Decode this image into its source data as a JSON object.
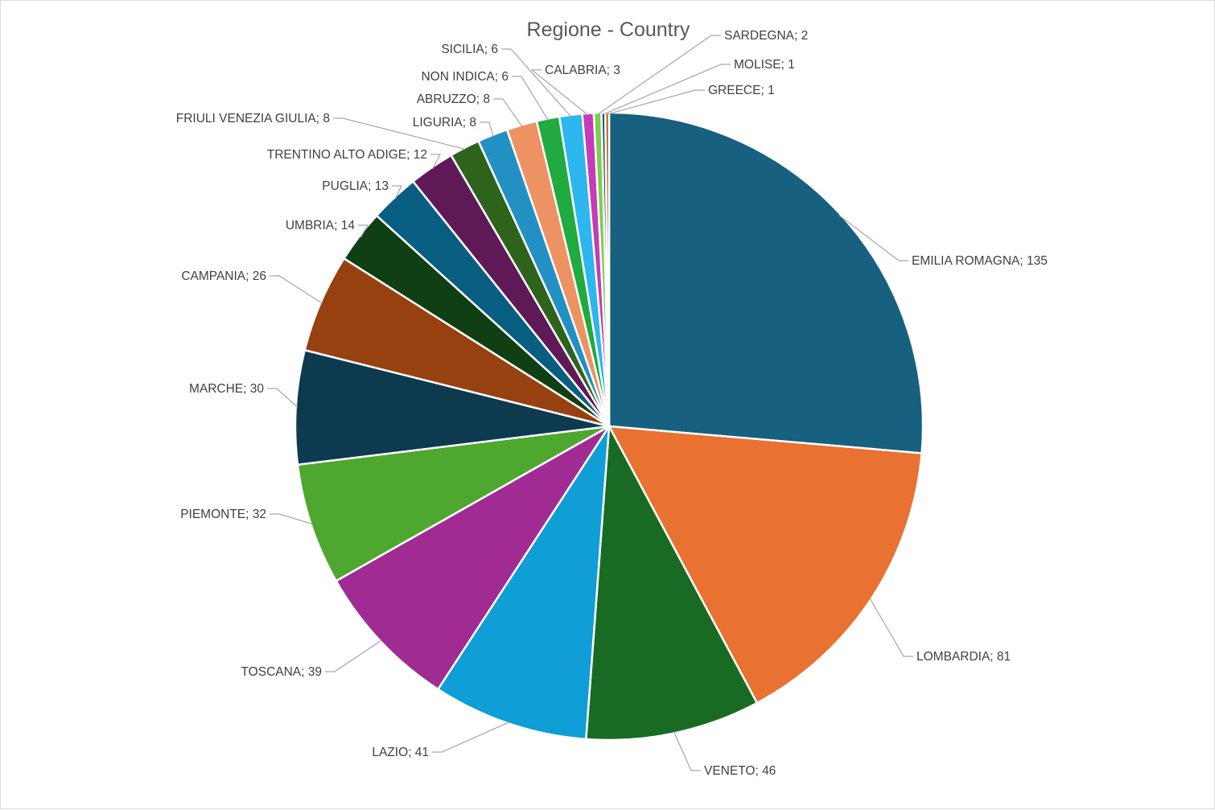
{
  "chart_data": {
    "type": "pie",
    "title": "Regione - Country",
    "legend": "none",
    "slices": [
      {
        "label": "EMILIA ROMAGNA",
        "value": 135,
        "color": "#17607f",
        "text": "EMILIA ROMAGNA; 135"
      },
      {
        "label": "LOMBARDIA",
        "value": 81,
        "color": "#e97132",
        "text": "LOMBARDIA; 81"
      },
      {
        "label": "VENETO",
        "value": 46,
        "color": "#196b24",
        "text": "VENETO; 46"
      },
      {
        "label": "LAZIO",
        "value": 41,
        "color": "#0f9ed5",
        "text": "LAZIO; 41"
      },
      {
        "label": "TOSCANA",
        "value": 39,
        "color": "#a02b93",
        "text": "TOSCANA; 39"
      },
      {
        "label": "PIEMONTE",
        "value": 32,
        "color": "#4ea72e",
        "text": "PIEMONTE; 32"
      },
      {
        "label": "MARCHE",
        "value": 30,
        "color": "#0d3a4f",
        "text": "MARCHE; 30"
      },
      {
        "label": "CAMPANIA",
        "value": 26,
        "color": "#974010",
        "text": "CAMPANIA; 26"
      },
      {
        "label": "UMBRIA",
        "value": 14,
        "color": "#0f3f13",
        "text": "UMBRIA; 14"
      },
      {
        "label": "PUGLIA",
        "value": 13,
        "color": "#085e80",
        "text": "PUGLIA; 13"
      },
      {
        "label": "TRENTINO ALTO ADIGE",
        "value": 12,
        "color": "#601957",
        "text": "TRENTINO ALTO ADIGE; 12"
      },
      {
        "label": "FRIULI VENEZIA GIULIA",
        "value": 8,
        "color": "#2e631c",
        "text": "FRIULI VENEZIA GIULIA; 8"
      },
      {
        "label": "LIGURIA",
        "value": 8,
        "color": "#2390c3",
        "text": "LIGURIA; 8"
      },
      {
        "label": "ABRUZZO",
        "value": 8,
        "color": "#ed9263",
        "text": "ABRUZZO; 8"
      },
      {
        "label": "NON INDICA",
        "value": 6,
        "color": "#20aa3f",
        "text": "NON INDICA; 6"
      },
      {
        "label": "SICILIA",
        "value": 6,
        "color": "#2eb6ef",
        "text": "SICILIA; 6"
      },
      {
        "label": "CALABRIA",
        "value": 3,
        "color": "#c63bb8",
        "text": "CALABRIA; 3"
      },
      {
        "label": "SARDEGNA",
        "value": 2,
        "color": "#7bcf4d",
        "text": "SARDEGNA; 2"
      },
      {
        "label": "MOLISE",
        "value": 1,
        "color": "#1d5874",
        "text": "MOLISE; 1"
      },
      {
        "label": "GREECE",
        "value": 1,
        "color": "#c25e1c",
        "text": "GREECE; 1"
      }
    ]
  }
}
